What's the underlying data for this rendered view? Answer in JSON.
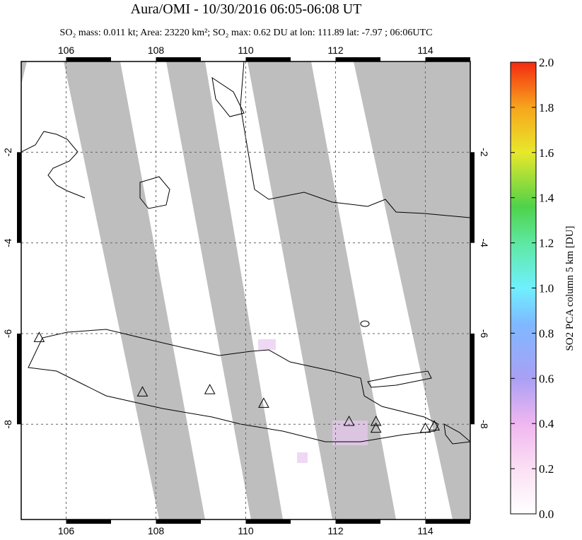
{
  "chart_data": {
    "type": "map",
    "title": "Aura/OMI - 10/30/2016 06:05-06:08 UT",
    "subtitle": "SO₂ mass: 0.011 kt; Area: 23220 km²; SO₂ max: 0.62 DU at lon: 111.89 lat: -7.97 ; 06:06UTC",
    "xlim": [
      105,
      115
    ],
    "xticks": [
      106,
      108,
      110,
      112,
      114
    ],
    "ylim": [
      -10.1,
      0
    ],
    "yticks": [
      -2,
      -4,
      -6,
      -8
    ],
    "volcanoes": {
      "lon": [
        105.4,
        107.7,
        109.2,
        110.4,
        112.3,
        112.9,
        112.9,
        114.0,
        114.2
      ],
      "lat": [
        -6.1,
        -7.3,
        -7.25,
        -7.55,
        -7.95,
        -7.95,
        -8.1,
        -8.1,
        -8.05
      ]
    },
    "colorbar": {
      "label": "SO2 PCA column 5 km [DU]",
      "lim": [
        0,
        2
      ],
      "ticks": [
        {
          "value": 0,
          "label": "0.0"
        },
        0.2,
        0.4,
        0.6,
        0.8,
        {
          "value": 1,
          "label": "1.0"
        },
        1.2,
        1.4,
        1.6,
        1.8,
        {
          "value": 2,
          "label": "2.0"
        }
      ]
    }
  }
}
